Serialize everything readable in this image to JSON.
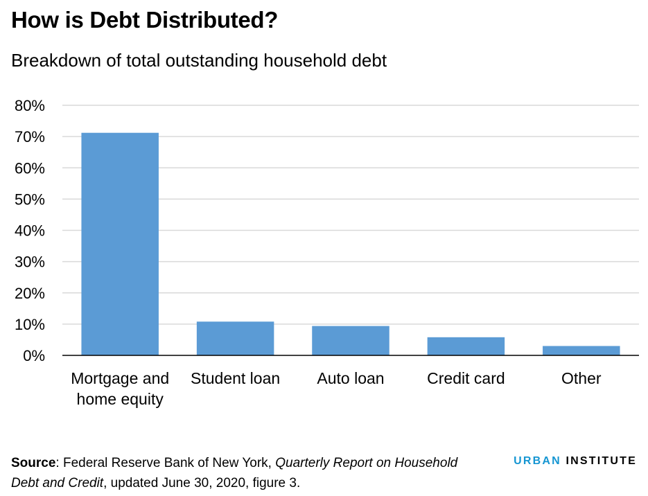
{
  "header": {
    "title": "How is Debt Distributed?",
    "subtitle": "Breakdown of total outstanding household debt"
  },
  "footer": {
    "source_label": "Source",
    "source_text_1": ": Federal Reserve Bank of New York, ",
    "source_italic_1": "Quarterly Report on Household Debt and Credit",
    "source_text_2": ", updated June 30, 2020, figure 3."
  },
  "logo": {
    "word1": "URBAN",
    "word2": "INSTITUTE"
  },
  "colors": {
    "bar": "#5b9bd5",
    "grid": "#d9d9d9",
    "axis": "#000000",
    "logo_accent": "#1696d2"
  },
  "chart_data": {
    "type": "bar",
    "title": "How is Debt Distributed?",
    "subtitle": "Breakdown of total outstanding household debt",
    "categories": [
      [
        "Mortgage and",
        "home equity"
      ],
      [
        "Student loan"
      ],
      [
        "Auto loan"
      ],
      [
        "Credit card"
      ],
      [
        "Other"
      ]
    ],
    "values": [
      71.2,
      10.8,
      9.4,
      5.8,
      3.0
    ],
    "ylim": [
      0,
      80
    ],
    "yticks": [
      0,
      10,
      20,
      30,
      40,
      50,
      60,
      70,
      80
    ],
    "ytick_labels": [
      "0%",
      "10%",
      "20%",
      "30%",
      "40%",
      "50%",
      "60%",
      "70%",
      "80%"
    ],
    "xlabel": "",
    "ylabel": "",
    "grid": true,
    "legend": "none"
  }
}
